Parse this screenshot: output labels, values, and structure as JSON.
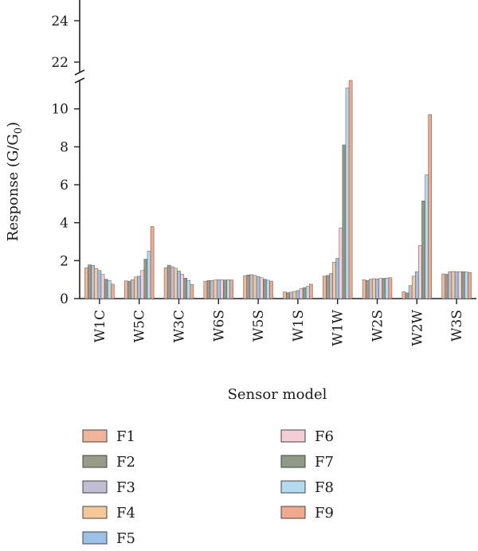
{
  "chart_data": {
    "type": "bar",
    "title": "",
    "xlabel": "Sensor model",
    "ylabel": "Response (G/G",
    "ylabel_sub": "0",
    "ylabel_close": ")",
    "ylim_lower": [
      0,
      11.5
    ],
    "ylim_upper": [
      21.5,
      25
    ],
    "yticks_lower": [
      0,
      2,
      4,
      6,
      8,
      10
    ],
    "yticks_upper": [
      22,
      24
    ],
    "axis_break": true,
    "legend_position": "bottom",
    "categories": [
      "W1C",
      "W5C",
      "W3C",
      "W6S",
      "W5S",
      "W1S",
      "W1W",
      "W2S",
      "W2W",
      "W3S"
    ],
    "series": [
      {
        "name": "F1",
        "color": "#f0b49a",
        "values": [
          1.62,
          0.93,
          1.62,
          0.92,
          1.2,
          0.35,
          1.18,
          0.99,
          0.36,
          1.3
        ]
      },
      {
        "name": "F2",
        "color": "#9a9a88",
        "values": [
          1.78,
          0.92,
          1.76,
          0.95,
          1.25,
          0.31,
          1.22,
          0.95,
          0.3,
          1.28
        ]
      },
      {
        "name": "F3",
        "color": "#c2bdd2",
        "values": [
          1.75,
          1.0,
          1.68,
          0.96,
          1.26,
          0.34,
          1.32,
          1.02,
          0.68,
          1.42
        ]
      },
      {
        "name": "F4",
        "color": "#f5c89a",
        "values": [
          1.58,
          1.14,
          1.6,
          0.98,
          1.22,
          0.38,
          1.92,
          1.05,
          1.18,
          1.43
        ]
      },
      {
        "name": "F5",
        "color": "#9cc0e6",
        "values": [
          1.48,
          1.18,
          1.45,
          1.0,
          1.16,
          0.42,
          2.12,
          1.04,
          1.42,
          1.42
        ]
      },
      {
        "name": "F6",
        "color": "#f5cdd5",
        "values": [
          1.28,
          1.48,
          1.28,
          0.99,
          1.1,
          0.52,
          3.72,
          1.06,
          2.8,
          1.42
        ]
      },
      {
        "name": "F7",
        "color": "#8e9a86",
        "values": [
          1.02,
          2.08,
          1.08,
          0.98,
          1.02,
          0.58,
          8.1,
          1.07,
          5.15,
          1.42
        ]
      },
      {
        "name": "F8",
        "color": "#b4daf0",
        "values": [
          0.96,
          2.5,
          0.96,
          0.99,
          0.97,
          0.64,
          11.1,
          1.08,
          6.52,
          1.4
        ]
      },
      {
        "name": "F9",
        "color": "#f2a88c",
        "values": [
          0.76,
          3.8,
          0.74,
          0.98,
          0.92,
          0.76,
          12.3,
          1.1,
          9.7,
          1.38
        ]
      }
    ]
  }
}
